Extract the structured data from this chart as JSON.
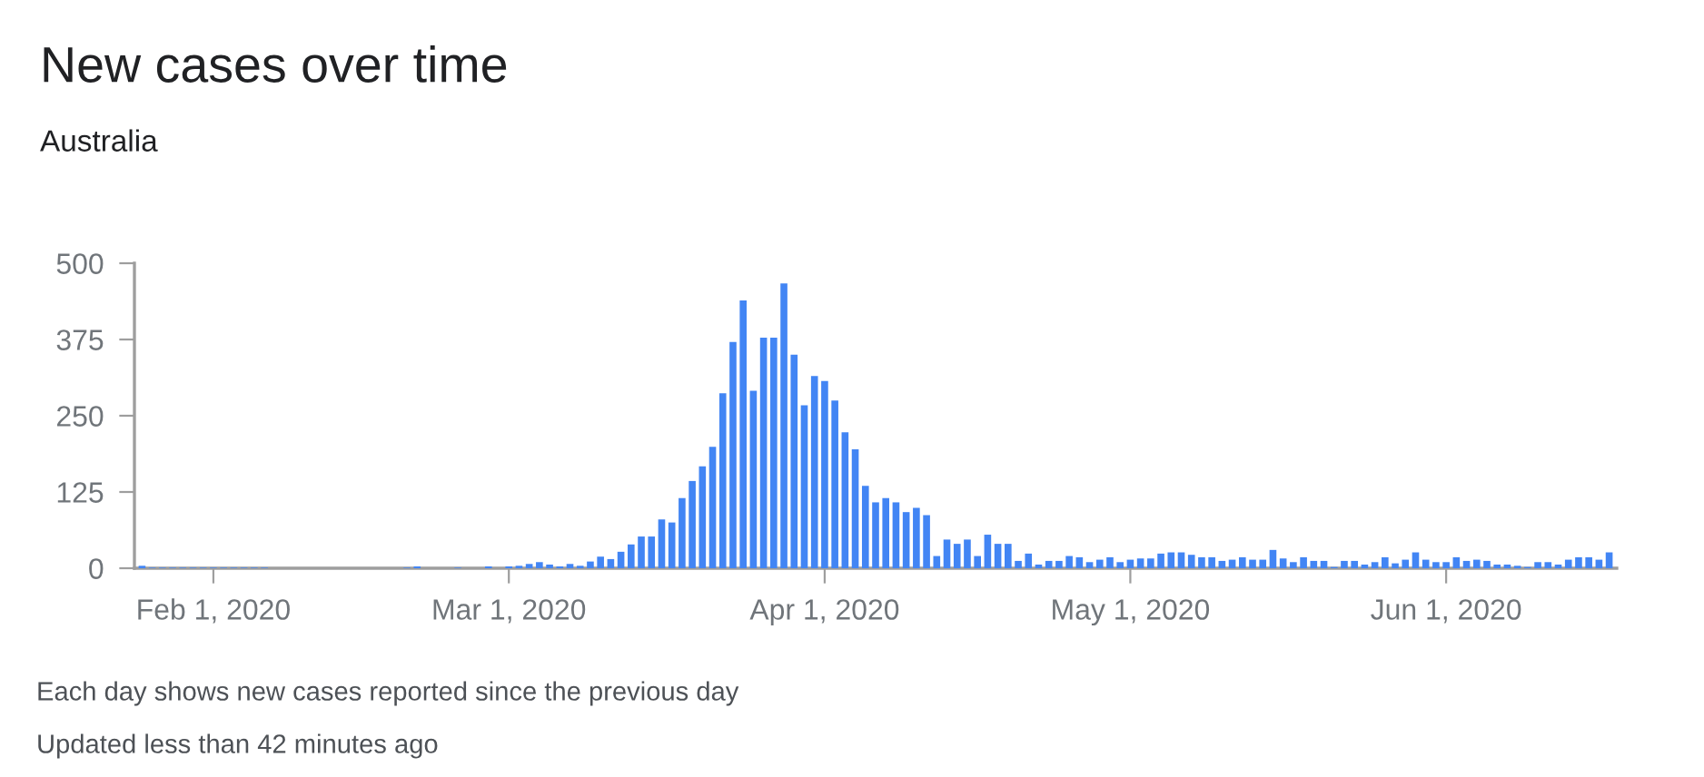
{
  "chart_data": {
    "type": "bar",
    "title": "New cases over time",
    "subtitle": "Australia",
    "x": [
      "2020-01-25",
      "2020-01-26",
      "2020-01-27",
      "2020-01-28",
      "2020-01-29",
      "2020-01-30",
      "2020-01-31",
      "2020-02-01",
      "2020-02-02",
      "2020-02-03",
      "2020-02-04",
      "2020-02-05",
      "2020-02-06",
      "2020-02-07",
      "2020-02-08",
      "2020-02-09",
      "2020-02-10",
      "2020-02-11",
      "2020-02-12",
      "2020-02-13",
      "2020-02-14",
      "2020-02-15",
      "2020-02-16",
      "2020-02-17",
      "2020-02-18",
      "2020-02-19",
      "2020-02-20",
      "2020-02-21",
      "2020-02-22",
      "2020-02-23",
      "2020-02-24",
      "2020-02-25",
      "2020-02-26",
      "2020-02-27",
      "2020-02-28",
      "2020-02-29",
      "2020-03-01",
      "2020-03-02",
      "2020-03-03",
      "2020-03-04",
      "2020-03-05",
      "2020-03-06",
      "2020-03-07",
      "2020-03-08",
      "2020-03-09",
      "2020-03-10",
      "2020-03-11",
      "2020-03-12",
      "2020-03-13",
      "2020-03-14",
      "2020-03-15",
      "2020-03-16",
      "2020-03-17",
      "2020-03-18",
      "2020-03-19",
      "2020-03-20",
      "2020-03-21",
      "2020-03-22",
      "2020-03-23",
      "2020-03-24",
      "2020-03-25",
      "2020-03-26",
      "2020-03-27",
      "2020-03-28",
      "2020-03-29",
      "2020-03-30",
      "2020-03-31",
      "2020-04-01",
      "2020-04-02",
      "2020-04-03",
      "2020-04-04",
      "2020-04-05",
      "2020-04-06",
      "2020-04-07",
      "2020-04-08",
      "2020-04-09",
      "2020-04-10",
      "2020-04-11",
      "2020-04-12",
      "2020-04-13",
      "2020-04-14",
      "2020-04-15",
      "2020-04-16",
      "2020-04-17",
      "2020-04-18",
      "2020-04-19",
      "2020-04-20",
      "2020-04-21",
      "2020-04-22",
      "2020-04-23",
      "2020-04-24",
      "2020-04-25",
      "2020-04-26",
      "2020-04-27",
      "2020-04-28",
      "2020-04-29",
      "2020-04-30",
      "2020-05-01",
      "2020-05-02",
      "2020-05-03",
      "2020-05-04",
      "2020-05-05",
      "2020-05-06",
      "2020-05-07",
      "2020-05-08",
      "2020-05-09",
      "2020-05-10",
      "2020-05-11",
      "2020-05-12",
      "2020-05-13",
      "2020-05-14",
      "2020-05-15",
      "2020-05-16",
      "2020-05-17",
      "2020-05-18",
      "2020-05-19",
      "2020-05-20",
      "2020-05-21",
      "2020-05-22",
      "2020-05-23",
      "2020-05-24",
      "2020-05-25",
      "2020-05-26",
      "2020-05-27",
      "2020-05-28",
      "2020-05-29",
      "2020-05-30",
      "2020-05-31",
      "2020-06-01",
      "2020-06-02",
      "2020-06-03",
      "2020-06-04",
      "2020-06-05",
      "2020-06-06",
      "2020-06-07",
      "2020-06-08",
      "2020-06-09",
      "2020-06-10",
      "2020-06-11",
      "2020-06-12",
      "2020-06-13",
      "2020-06-14",
      "2020-06-15",
      "2020-06-16",
      "2020-06-17"
    ],
    "values": [
      4,
      1,
      1,
      1,
      1,
      1,
      1,
      1,
      1,
      1,
      1,
      1,
      1,
      0,
      0,
      0,
      0,
      0,
      0,
      0,
      0,
      0,
      0,
      0,
      0,
      0,
      1,
      3,
      0,
      0,
      0,
      1,
      0,
      0,
      3,
      0,
      3,
      4,
      7,
      10,
      6,
      3,
      7,
      4,
      11,
      19,
      15,
      27,
      39,
      52,
      52,
      80,
      75,
      115,
      143,
      167,
      199,
      287,
      371,
      439,
      291,
      378,
      378,
      467,
      350,
      267,
      315,
      307,
      275,
      223,
      195,
      135,
      108,
      115,
      108,
      92,
      99,
      87,
      20,
      47,
      40,
      47,
      20,
      55,
      40,
      40,
      12,
      24,
      6,
      12,
      12,
      20,
      18,
      10,
      14,
      18,
      10,
      14,
      16,
      16,
      24,
      26,
      26,
      22,
      18,
      18,
      12,
      14,
      18,
      14,
      14,
      30,
      16,
      10,
      18,
      12,
      12,
      2,
      12,
      12,
      6,
      10,
      18,
      8,
      14,
      26,
      14,
      10,
      10,
      18,
      12,
      14,
      12,
      6,
      6,
      4,
      2,
      10,
      10,
      6,
      14,
      18,
      18,
      14,
      26
    ],
    "color": "#4285f4",
    "xlim": [
      "2020-01-24T06:00",
      "2020-06-17T18:00"
    ],
    "xticks": [
      {
        "value": "2020-02-01",
        "label": "Feb 1, 2020"
      },
      {
        "value": "2020-03-01",
        "label": "Mar 1, 2020"
      },
      {
        "value": "2020-04-01",
        "label": "Apr 1, 2020"
      },
      {
        "value": "2020-05-01",
        "label": "May 1, 2020"
      },
      {
        "value": "2020-06-01",
        "label": "Jun 1, 2020"
      }
    ],
    "ylim": [
      0,
      500
    ],
    "yticks": [
      0,
      125,
      250,
      375,
      500
    ],
    "grid": false,
    "annotations": [
      "Each day shows new cases reported since the previous day",
      "Updated less than 42 minutes ago"
    ]
  }
}
